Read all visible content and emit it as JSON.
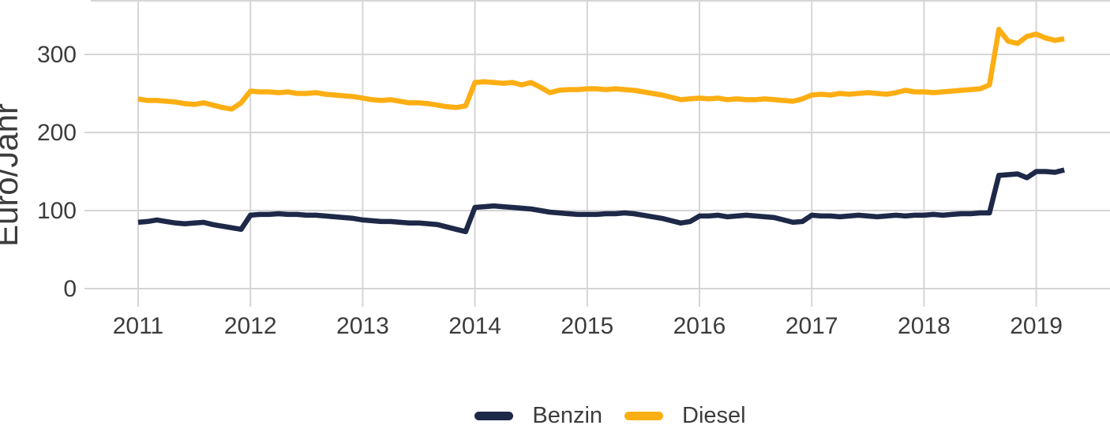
{
  "chart_data": {
    "type": "line",
    "title": "",
    "xlabel": "",
    "ylabel": "Euro/Jahr",
    "x_unit": "month",
    "x_start": "2011-01",
    "x_end": "2019-04",
    "x_tick_labels": [
      "2011",
      "2012",
      "2013",
      "2014",
      "2015",
      "2016",
      "2017",
      "2018",
      "2019"
    ],
    "y_ticks": [
      0,
      100,
      200,
      300
    ],
    "ylim": [
      0,
      370
    ],
    "grid": true,
    "grid_color": "#d5d5d5",
    "text_color": "#3c3c3c",
    "legend_position": "bottom-center",
    "series": [
      {
        "name": "Benzin",
        "color": "#1e2848",
        "values": [
          85,
          86,
          88,
          86,
          84,
          83,
          84,
          85,
          82,
          80,
          78,
          76,
          94,
          95,
          95,
          96,
          95,
          95,
          94,
          94,
          93,
          92,
          91,
          90,
          88,
          87,
          86,
          86,
          85,
          84,
          84,
          83,
          82,
          79,
          76,
          73,
          104,
          105,
          106,
          105,
          104,
          103,
          102,
          100,
          98,
          97,
          96,
          95,
          95,
          95,
          96,
          96,
          97,
          96,
          94,
          92,
          90,
          87,
          84,
          86,
          93,
          93,
          94,
          92,
          93,
          94,
          93,
          92,
          91,
          88,
          85,
          86,
          94,
          93,
          93,
          92,
          93,
          94,
          93,
          92,
          93,
          94,
          93,
          94,
          94,
          95,
          94,
          95,
          96,
          96,
          97,
          97,
          145,
          146,
          147,
          142,
          150,
          150,
          149,
          152
        ]
      },
      {
        "name": "Diesel",
        "color": "#fcae13",
        "values": [
          243,
          241,
          241,
          240,
          239,
          237,
          236,
          238,
          235,
          232,
          230,
          238,
          253,
          252,
          252,
          251,
          252,
          250,
          250,
          251,
          249,
          248,
          247,
          246,
          244,
          242,
          241,
          242,
          240,
          238,
          238,
          237,
          235,
          233,
          232,
          234,
          264,
          265,
          264,
          263,
          264,
          261,
          264,
          258,
          251,
          254,
          255,
          255,
          256,
          256,
          255,
          256,
          255,
          254,
          252,
          250,
          248,
          245,
          242,
          243,
          244,
          243,
          244,
          242,
          243,
          242,
          242,
          243,
          242,
          241,
          240,
          243,
          248,
          249,
          248,
          250,
          249,
          250,
          251,
          250,
          249,
          251,
          254,
          252,
          252,
          251,
          252,
          253,
          254,
          255,
          256,
          261,
          332,
          317,
          314,
          323,
          326,
          321,
          318,
          320
        ]
      }
    ]
  }
}
